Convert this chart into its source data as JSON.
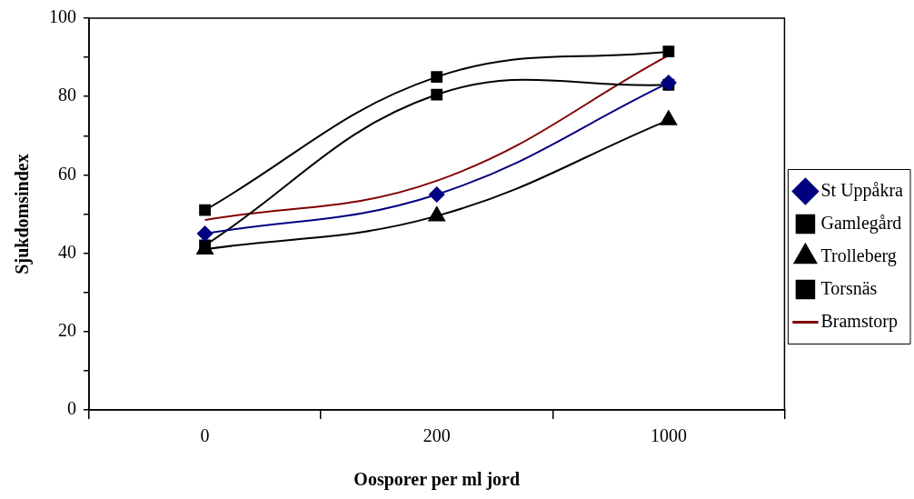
{
  "chart_data": {
    "type": "line",
    "xlabel": "Oosporer per ml jord",
    "ylabel": "Sjukdomsindex",
    "categories": [
      "0",
      "200",
      "1000"
    ],
    "ylim": [
      0,
      100
    ],
    "yticks": [
      0,
      {
        "value": 10,
        "label": null
      },
      20,
      {
        "value": 30,
        "label": null
      },
      40,
      {
        "value": 50,
        "label": null
      },
      60,
      {
        "value": 70,
        "label": null
      },
      80,
      {
        "value": 90,
        "label": null
      },
      100
    ],
    "legend": "right",
    "series": [
      {
        "name": "St Uppåkra",
        "color": "#000080",
        "marker": "diamond",
        "values": [
          45,
          55,
          83.5
        ]
      },
      {
        "name": "Gamlegård",
        "color": "#000000",
        "marker": "square",
        "values": [
          42,
          80.5,
          83
        ]
      },
      {
        "name": "Trolleberg",
        "color": "#000000",
        "marker": "triangle",
        "values": [
          41,
          49.5,
          74
        ]
      },
      {
        "name": "Torsnäs",
        "color": "#000000",
        "marker": "square",
        "values": [
          51,
          85,
          91.5
        ]
      },
      {
        "name": "Bramstorp",
        "color": "#800000",
        "marker": "none",
        "values": [
          48.5,
          58.5,
          90.5
        ]
      }
    ]
  }
}
